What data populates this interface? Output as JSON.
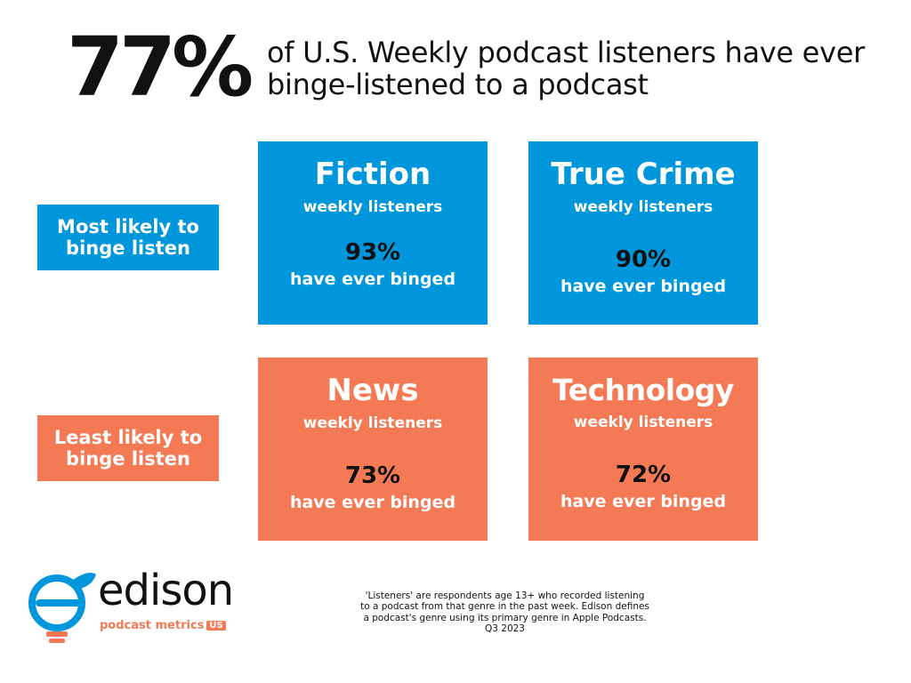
{
  "headline": {
    "number": "77%",
    "text": "of U.S. Weekly podcast listeners have ever binge-listened to a podcast"
  },
  "rows": {
    "top_label": "Most likely to binge listen",
    "bottom_label": "Least likely to binge listen"
  },
  "cards": [
    {
      "genre": "Fiction",
      "sub": "weekly listeners",
      "percent": "93%",
      "binged": "have ever binged"
    },
    {
      "genre": "True Crime",
      "sub": "weekly listeners",
      "percent": "90%",
      "binged": "have ever binged"
    },
    {
      "genre": "News",
      "sub": "weekly listeners",
      "percent": "73%",
      "binged": "have ever binged"
    },
    {
      "genre": "Technology",
      "sub": "weekly listeners",
      "percent": "72%",
      "binged": "have ever binged"
    }
  ],
  "footnote": "'Listeners' are respondents age 13+ who recorded listening to a podcast from that genre in the past week. Edison defines a podcast's genre using its primary genre in Apple Podcasts.  Q3 2023",
  "logo": {
    "name": "edison",
    "tagline": "podcast metrics",
    "badge": "US"
  },
  "colors": {
    "blue": "#0096dc",
    "orange": "#f47a56",
    "text": "#111111"
  }
}
